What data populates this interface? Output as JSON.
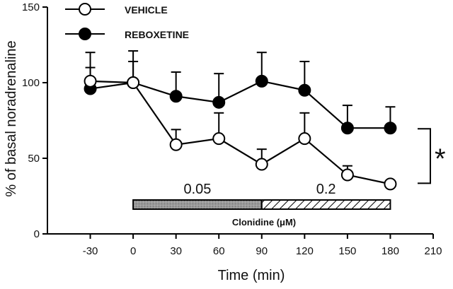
{
  "chart_data": {
    "type": "line",
    "xlabel": "Time (min)",
    "ylabel": "% of basal noradrenaline",
    "xlim": [
      -60,
      210
    ],
    "ylim": [
      0,
      150
    ],
    "x_ticks": [
      "-30",
      "0",
      "30",
      "60",
      "90",
      "120",
      "150",
      "180",
      "210"
    ],
    "y_ticks": [
      "0",
      "50",
      "100",
      "150"
    ],
    "x": [
      -30,
      0,
      30,
      60,
      90,
      120,
      150,
      180
    ],
    "series": [
      {
        "name": "VEHICLE",
        "marker": "open-circle",
        "values": [
          101,
          100,
          59,
          63,
          46,
          63,
          39,
          33
        ],
        "error_upper": [
          110,
          114,
          69,
          80,
          56,
          80,
          45,
          33
        ]
      },
      {
        "name": "REBOXETINE",
        "marker": "filled-circle",
        "values": [
          96,
          100,
          91,
          87,
          101,
          95,
          70,
          70
        ],
        "error_upper": [
          120,
          121,
          107,
          106,
          120,
          114,
          85,
          84
        ]
      }
    ],
    "treatment_bar": {
      "label": "Clonidine (μM)",
      "segments": [
        {
          "label": "0.05",
          "x_start": 0,
          "x_end": 90,
          "fill": "gray"
        },
        {
          "label": "0.2",
          "x_start": 90,
          "x_end": 180,
          "fill": "hatched"
        }
      ]
    },
    "significance": {
      "symbol": "*",
      "bracket_y_range": [
        33,
        70
      ]
    },
    "grid": false,
    "legend_position": "top"
  },
  "colors": {
    "line": "#000000",
    "open_fill": "#ffffff",
    "filled_fill": "#000000",
    "bar_gray": "#9a9a9a"
  }
}
